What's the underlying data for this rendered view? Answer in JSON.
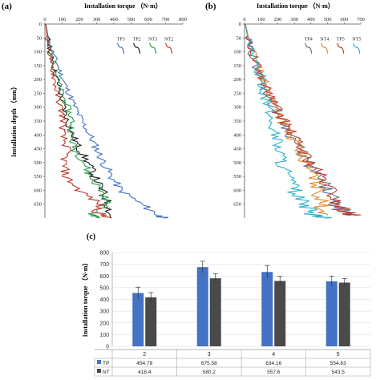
{
  "chart_data": [
    {
      "panel": "(a)",
      "type": "line",
      "xlabel": "Installation torque （N·m）",
      "ylabel": "Installation depth （mm）",
      "xlim": [
        0,
        800
      ],
      "ylim": [
        0,
        700
      ],
      "y_reversed": true,
      "xticks": [
        0,
        100,
        200,
        300,
        400,
        500,
        600,
        700,
        800
      ],
      "yticks": [
        0,
        50,
        100,
        150,
        200,
        250,
        300,
        350,
        400,
        450,
        500,
        550,
        600,
        650
      ],
      "legend": "top-right",
      "series": [
        {
          "name": "TP3",
          "color": "#4472c4",
          "points": [
            [
              5,
              0
            ],
            [
              20,
              50
            ],
            [
              45,
              100
            ],
            [
              75,
              150
            ],
            [
              105,
              200
            ],
            [
              140,
              250
            ],
            [
              175,
              300
            ],
            [
              215,
              350
            ],
            [
              260,
              400
            ],
            [
              300,
              450
            ],
            [
              340,
              500
            ],
            [
              385,
              550
            ],
            [
              440,
              600
            ],
            [
              560,
              650
            ],
            [
              660,
              690
            ],
            [
              690,
              700
            ]
          ]
        },
        {
          "name": "TP2",
          "color": "#1a1a1a",
          "points": [
            [
              5,
              0
            ],
            [
              15,
              50
            ],
            [
              30,
              100
            ],
            [
              50,
              150
            ],
            [
              70,
              200
            ],
            [
              90,
              250
            ],
            [
              110,
              300
            ],
            [
              130,
              350
            ],
            [
              160,
              400
            ],
            [
              200,
              450
            ],
            [
              250,
              500
            ],
            [
              290,
              550
            ],
            [
              330,
              600
            ],
            [
              370,
              650
            ],
            [
              380,
              700
            ]
          ]
        },
        {
          "name": "NT3",
          "color": "#2e9e4f",
          "points": [
            [
              5,
              0
            ],
            [
              18,
              50
            ],
            [
              35,
              100
            ],
            [
              55,
              150
            ],
            [
              75,
              200
            ],
            [
              100,
              250
            ],
            [
              130,
              300
            ],
            [
              160,
              350
            ],
            [
              150,
              400
            ],
            [
              170,
              450
            ],
            [
              230,
              500
            ],
            [
              260,
              550
            ],
            [
              330,
              600
            ],
            [
              360,
              650
            ],
            [
              270,
              690
            ],
            [
              320,
              700
            ]
          ]
        },
        {
          "name": "NT2",
          "color": "#c0392b",
          "points": [
            [
              5,
              0
            ],
            [
              15,
              50
            ],
            [
              25,
              100
            ],
            [
              40,
              150
            ],
            [
              55,
              200
            ],
            [
              70,
              250
            ],
            [
              90,
              300
            ],
            [
              110,
              350
            ],
            [
              100,
              400
            ],
            [
              130,
              450
            ],
            [
              110,
              500
            ],
            [
              120,
              550
            ],
            [
              200,
              600
            ],
            [
              320,
              650
            ],
            [
              300,
              680
            ],
            [
              390,
              700
            ]
          ]
        }
      ]
    },
    {
      "panel": "(b)",
      "type": "line",
      "xlabel": "Installation torque （N·m）",
      "ylabel": "",
      "xlim": [
        0,
        700
      ],
      "ylim": [
        0,
        700
      ],
      "y_reversed": true,
      "xticks": [
        0,
        100,
        200,
        300,
        400,
        500,
        600,
        700
      ],
      "yticks": [
        0,
        50,
        100,
        150,
        200,
        250,
        300,
        350,
        400,
        450,
        500,
        550,
        600,
        650
      ],
      "legend": "top-right",
      "series": [
        {
          "name": "TP4",
          "color": "#5b6e8a",
          "points": [
            [
              5,
              0
            ],
            [
              20,
              50
            ],
            [
              40,
              100
            ],
            [
              70,
              150
            ],
            [
              100,
              200
            ],
            [
              140,
              250
            ],
            [
              180,
              300
            ],
            [
              230,
              350
            ],
            [
              280,
              400
            ],
            [
              330,
              450
            ],
            [
              380,
              500
            ],
            [
              440,
              550
            ],
            [
              500,
              600
            ],
            [
              540,
              650
            ],
            [
              600,
              680
            ],
            [
              640,
              690
            ]
          ]
        },
        {
          "name": "NT4",
          "color": "#e08a2e",
          "points": [
            [
              5,
              0
            ],
            [
              25,
              50
            ],
            [
              50,
              100
            ],
            [
              80,
              150
            ],
            [
              110,
              200
            ],
            [
              150,
              250
            ],
            [
              190,
              300
            ],
            [
              230,
              350
            ],
            [
              270,
              400
            ],
            [
              320,
              450
            ],
            [
              360,
              500
            ],
            [
              420,
              550
            ],
            [
              450,
              600
            ],
            [
              460,
              650
            ],
            [
              500,
              690
            ]
          ]
        },
        {
          "name": "TP5",
          "color": "#c0392b",
          "points": [
            [
              5,
              0
            ],
            [
              20,
              50
            ],
            [
              45,
              100
            ],
            [
              75,
              150
            ],
            [
              110,
              200
            ],
            [
              150,
              250
            ],
            [
              190,
              300
            ],
            [
              240,
              350
            ],
            [
              290,
              400
            ],
            [
              340,
              450
            ],
            [
              400,
              500
            ],
            [
              460,
              550
            ],
            [
              520,
              600
            ],
            [
              560,
              650
            ],
            [
              620,
              680
            ],
            [
              660,
              690
            ]
          ]
        },
        {
          "name": "NT5",
          "color": "#2bb3c8",
          "points": [
            [
              5,
              0
            ],
            [
              20,
              50
            ],
            [
              40,
              100
            ],
            [
              70,
              150
            ],
            [
              100,
              200
            ],
            [
              120,
              250
            ],
            [
              140,
              300
            ],
            [
              160,
              350
            ],
            [
              190,
              400
            ],
            [
              210,
              450
            ],
            [
              230,
              500
            ],
            [
              260,
              550
            ],
            [
              300,
              600
            ],
            [
              350,
              650
            ],
            [
              420,
              690
            ],
            [
              480,
              700
            ]
          ]
        }
      ]
    },
    {
      "panel": "(c)",
      "type": "bar",
      "ylabel": "Installation torque （N·m）",
      "ylim": [
        0,
        800
      ],
      "yticks": [
        0,
        100,
        200,
        300,
        400,
        500,
        600,
        700,
        800
      ],
      "categories": [
        "2",
        "3",
        "4",
        "5"
      ],
      "series": [
        {
          "name": "TP",
          "color": "#4472c4",
          "values": [
            454.78,
            675.58,
            634.16,
            554.63
          ],
          "err": [
            50,
            50,
            55,
            45
          ]
        },
        {
          "name": "NT",
          "color": "#4a4a4a",
          "values": [
            418.4,
            580.2,
            557.6,
            543.5
          ],
          "err": [
            40,
            40,
            40,
            35
          ]
        }
      ],
      "table": {
        "rows": [
          {
            "label": "TP",
            "values": [
              "454.78",
              "675.58",
              "634.16",
              "554.63"
            ]
          },
          {
            "label": "NT",
            "values": [
              "418.4",
              "580.2",
              "557.6",
              "543.5"
            ]
          }
        ]
      }
    }
  ]
}
